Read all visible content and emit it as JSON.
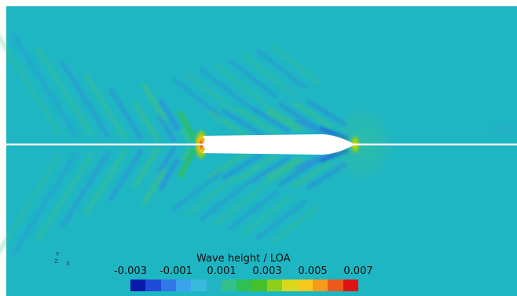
{
  "chart_data": {
    "type": "heatmap",
    "title": "",
    "legend": {
      "title": "Wave height / LOA",
      "ticks": [
        "-0.003",
        "-0.001",
        "0.001",
        "0.003",
        "0.005",
        "0.007"
      ],
      "tick_values": [
        -0.003,
        -0.001,
        0.001,
        0.003,
        0.005,
        0.007
      ],
      "range": [
        -0.003,
        0.007
      ],
      "placement": "bottom-center"
    },
    "colormap": [
      "#0a1aa8",
      "#1f4ad6",
      "#2f78e6",
      "#3aa3ee",
      "#39b9dc",
      "#22b6c4",
      "#33c08c",
      "#2fbf52",
      "#46c12a",
      "#8fcf1c",
      "#d7d91a",
      "#f4c81c",
      "#f59a1c",
      "#ee5a1a",
      "#dd1414"
    ],
    "background_color": "#1fb6c3",
    "hull_color": "#ffffff",
    "axis_triad": {
      "y": "Y",
      "z": "Z",
      "x": "X"
    }
  }
}
